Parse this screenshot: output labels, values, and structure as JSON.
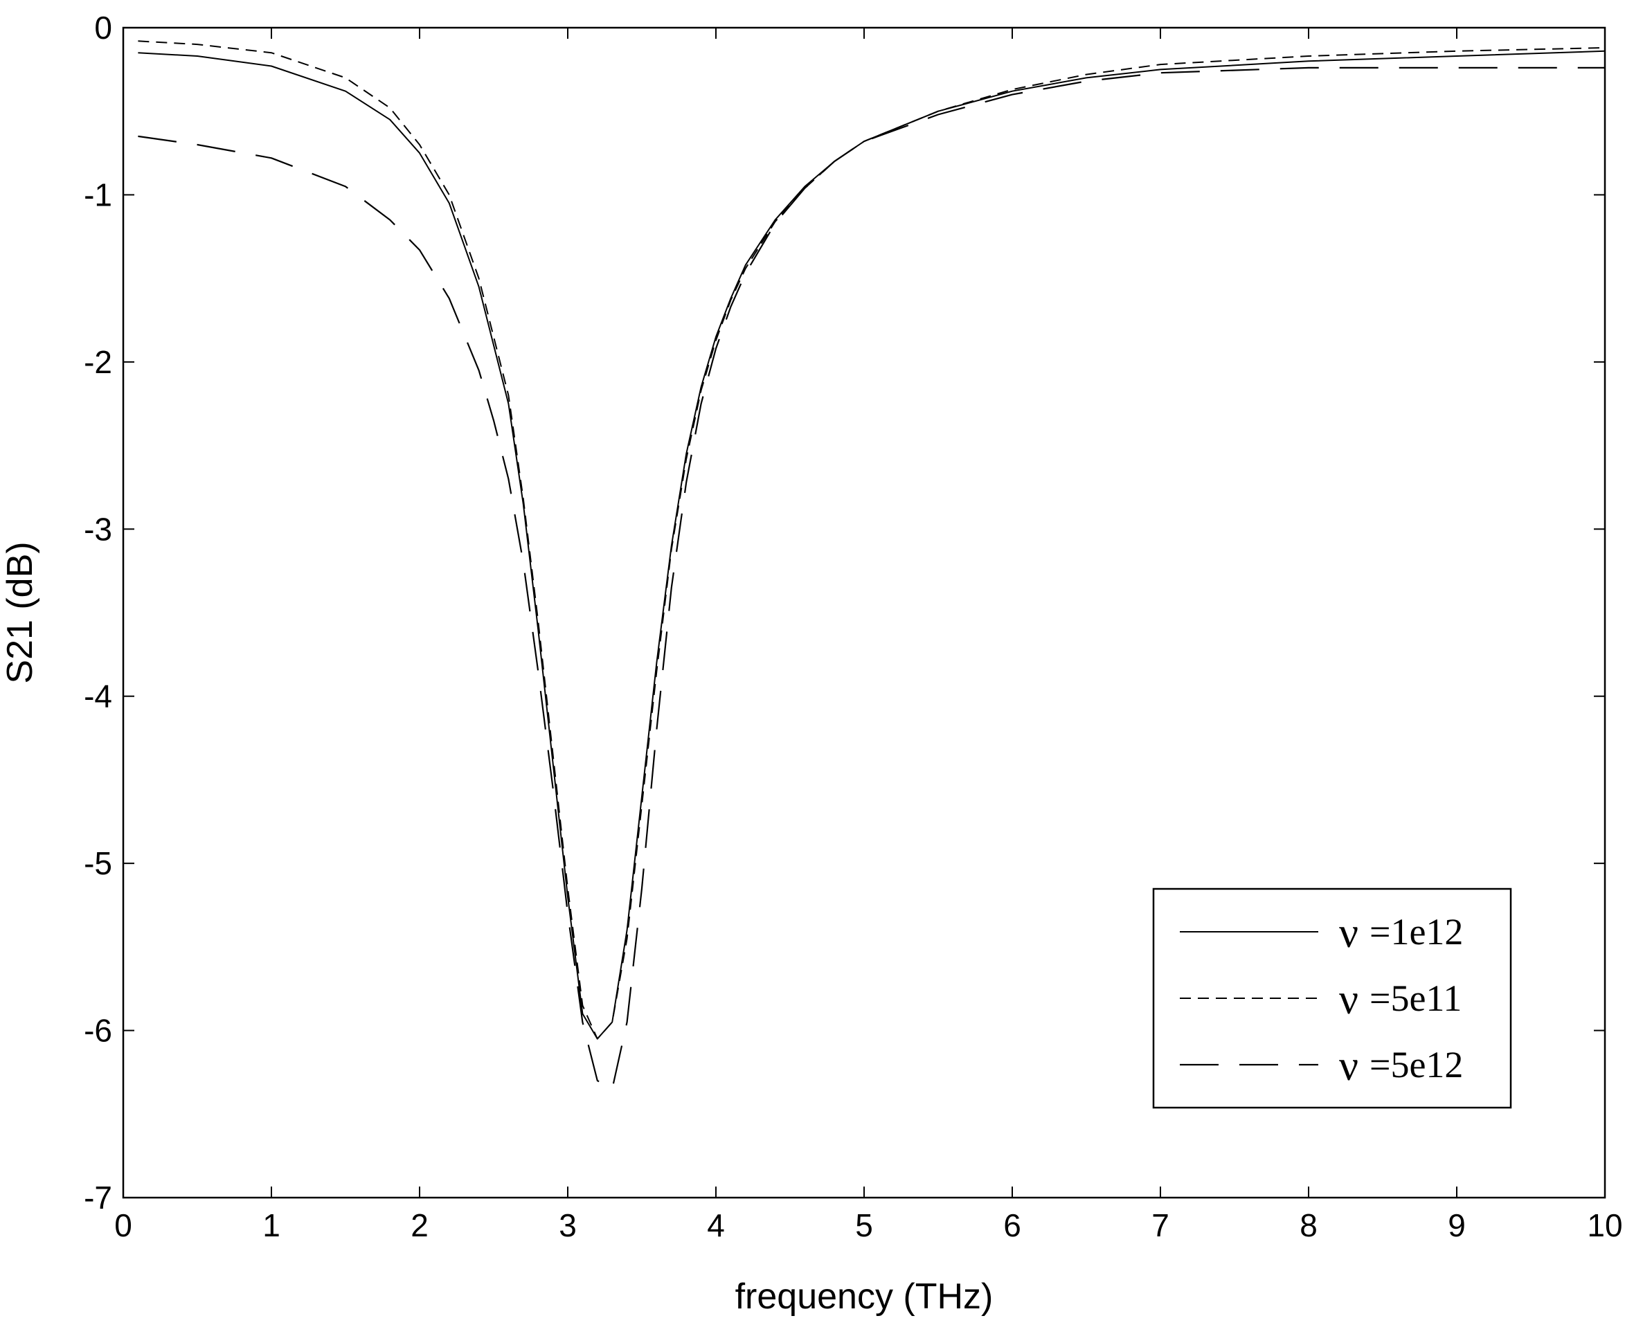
{
  "chart_data": {
    "type": "line",
    "title": "",
    "xlabel": "frequency (THz)",
    "ylabel": "S21 (dB)",
    "xlim": [
      0,
      10
    ],
    "ylim": [
      -7,
      0
    ],
    "xticks": [
      "0",
      "1",
      "2",
      "3",
      "4",
      "5",
      "6",
      "7",
      "8",
      "9",
      "10"
    ],
    "yticks": [
      "0",
      "-1",
      "-2",
      "-3",
      "-4",
      "-5",
      "-6",
      "-7"
    ],
    "grid": false,
    "legend_position": "bottom-right",
    "legend_symbol": "ν",
    "series": [
      {
        "name": "=1e12",
        "line_style": "solid",
        "x": [
          0.1,
          0.5,
          1.0,
          1.5,
          1.8,
          2.0,
          2.2,
          2.4,
          2.6,
          2.7,
          2.8,
          2.9,
          3.0,
          3.1,
          3.2,
          3.3,
          3.4,
          3.5,
          3.6,
          3.7,
          3.8,
          3.9,
          4.0,
          4.1,
          4.2,
          4.4,
          4.6,
          4.8,
          5.0,
          5.5,
          6.0,
          6.5,
          7.0,
          8.0,
          9.0,
          10.0
        ],
        "y": [
          -0.15,
          -0.17,
          -0.23,
          -0.38,
          -0.55,
          -0.75,
          -1.05,
          -1.55,
          -2.25,
          -2.85,
          -3.6,
          -4.4,
          -5.2,
          -5.9,
          -6.05,
          -5.95,
          -5.4,
          -4.6,
          -3.8,
          -3.1,
          -2.55,
          -2.15,
          -1.85,
          -1.62,
          -1.42,
          -1.15,
          -0.95,
          -0.8,
          -0.68,
          -0.5,
          -0.38,
          -0.3,
          -0.25,
          -0.2,
          -0.17,
          -0.14
        ]
      },
      {
        "name": "=5e11",
        "line_style": "dashed",
        "x": [
          0.1,
          0.5,
          1.0,
          1.5,
          1.8,
          2.0,
          2.2,
          2.4,
          2.6,
          2.7,
          2.8,
          2.9,
          3.0,
          3.1,
          3.2,
          3.3,
          3.4,
          3.5,
          3.6,
          3.7,
          3.8,
          3.9,
          4.0,
          4.1,
          4.2,
          4.4,
          4.6,
          4.8,
          5.0,
          5.5,
          6.0,
          6.5,
          7.0,
          8.0,
          9.0,
          10.0
        ],
        "y": [
          -0.08,
          -0.1,
          -0.15,
          -0.3,
          -0.48,
          -0.7,
          -1.0,
          -1.5,
          -2.2,
          -2.82,
          -3.55,
          -4.35,
          -5.15,
          -5.85,
          -6.05,
          -5.95,
          -5.45,
          -4.65,
          -3.85,
          -3.12,
          -2.58,
          -2.17,
          -1.87,
          -1.63,
          -1.44,
          -1.16,
          -0.96,
          -0.8,
          -0.68,
          -0.5,
          -0.37,
          -0.28,
          -0.22,
          -0.17,
          -0.14,
          -0.12
        ]
      },
      {
        "name": "=5e12",
        "line_style": "dash",
        "x": [
          0.1,
          0.5,
          1.0,
          1.5,
          1.8,
          2.0,
          2.2,
          2.4,
          2.5,
          2.6,
          2.7,
          2.8,
          2.9,
          3.0,
          3.1,
          3.2,
          3.3,
          3.4,
          3.5,
          3.6,
          3.7,
          3.8,
          3.9,
          4.0,
          4.1,
          4.2,
          4.4,
          4.6,
          4.8,
          5.0,
          5.5,
          6.0,
          6.5,
          7.0,
          8.0,
          9.0,
          10.0
        ],
        "y": [
          -0.65,
          -0.7,
          -0.78,
          -0.95,
          -1.15,
          -1.33,
          -1.62,
          -2.05,
          -2.35,
          -2.7,
          -3.2,
          -3.85,
          -4.55,
          -5.3,
          -5.95,
          -6.3,
          -6.35,
          -5.95,
          -5.15,
          -4.2,
          -3.35,
          -2.72,
          -2.25,
          -1.92,
          -1.67,
          -1.47,
          -1.17,
          -0.96,
          -0.8,
          -0.68,
          -0.52,
          -0.4,
          -0.32,
          -0.27,
          -0.24,
          -0.24,
          -0.24
        ]
      }
    ]
  }
}
